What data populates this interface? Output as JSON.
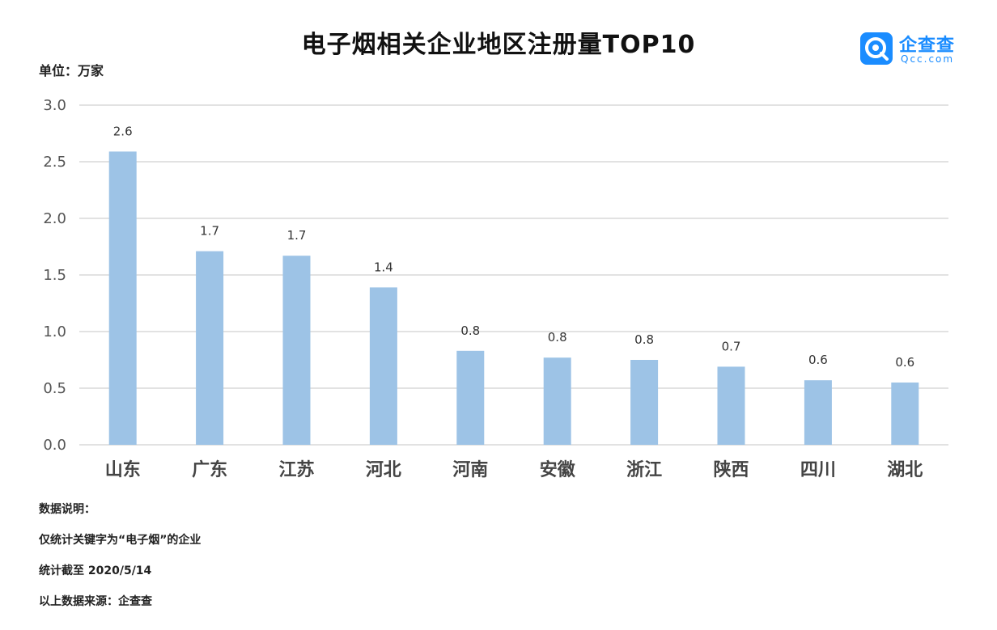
{
  "title": "电子烟相关企业地区注册量TOP10",
  "unit_label": "单位：万家",
  "logo": {
    "name": "企查查",
    "domain": "Qcc.com",
    "color": "#1a8cff"
  },
  "notes": [
    "数据说明：",
    "仅统计关键字为“电子烟”的企业",
    "统计截至 2020/5/14",
    "以上数据来源：企查查"
  ],
  "chart_data": {
    "type": "bar",
    "title": "电子烟相关企业地区注册量TOP10",
    "ylabel": "单位：万家",
    "xlabel": "",
    "categories": [
      "山东",
      "广东",
      "江苏",
      "河北",
      "河南",
      "安徽",
      "浙江",
      "陕西",
      "四川",
      "湖北"
    ],
    "values": [
      2.59,
      1.71,
      1.67,
      1.39,
      0.83,
      0.77,
      0.75,
      0.69,
      0.57,
      0.55
    ],
    "data_labels": [
      "2.6",
      "1.7",
      "1.7",
      "1.4",
      "0.8",
      "0.8",
      "0.8",
      "0.7",
      "0.6",
      "0.6"
    ],
    "ylim": [
      0,
      3.0
    ],
    "y_ticks": [
      "0.0",
      "0.5",
      "1.0",
      "1.5",
      "2.0",
      "2.5",
      "3.0"
    ],
    "grid": true,
    "bar_color": "#9dc3e6",
    "grid_color": "#d9d9d9"
  }
}
